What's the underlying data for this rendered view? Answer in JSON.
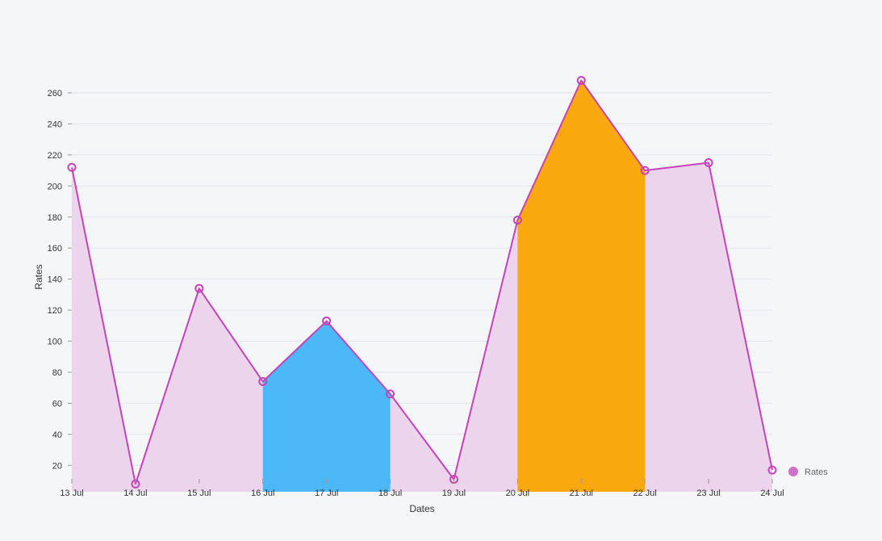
{
  "chart_data": {
    "type": "area",
    "xlabel": "Dates",
    "ylabel": "Rates",
    "categories": [
      "13 Jul",
      "14 Jul",
      "15 Jul",
      "16 Jul",
      "17 Jul",
      "18 Jul",
      "19 Jul",
      "20 Jul",
      "21 Jul",
      "22 Jul",
      "23 Jul",
      "24 Jul"
    ],
    "yticks": [
      20,
      40,
      60,
      80,
      100,
      120,
      140,
      160,
      180,
      200,
      220,
      240,
      260
    ],
    "ylim": [
      3,
      273
    ],
    "grid": true,
    "legend_position": "right",
    "series": [
      {
        "name": "Rates",
        "color": "#c643b7",
        "fill": "#ecd4ec",
        "values": [
          212,
          8,
          134,
          74,
          113,
          66,
          11,
          178,
          268,
          210,
          215,
          17
        ]
      }
    ],
    "highlights": [
      {
        "from": "16 Jul",
        "to": "18 Jul",
        "color": "#4db8f8"
      },
      {
        "from": "20 Jul",
        "to": "22 Jul",
        "color": "#f9a80e"
      }
    ]
  }
}
